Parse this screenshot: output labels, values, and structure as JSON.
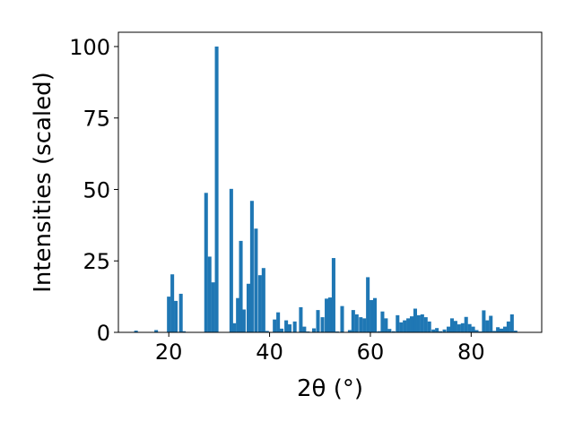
{
  "chart_data": {
    "type": "bar",
    "xlabel": "2θ (°)",
    "ylabel": "Intensities (scaled)",
    "xlim": [
      10,
      94
    ],
    "ylim": [
      0,
      105
    ],
    "xticks": [
      20,
      40,
      60,
      80
    ],
    "yticks": [
      0,
      25,
      50,
      75,
      100
    ],
    "bar_width": 0.72,
    "bar_color": "#1f77b4",
    "grid": false,
    "legend": "none",
    "x": [
      13.5,
      17.5,
      20.0,
      20.7,
      21.4,
      22.4,
      23.0,
      27.4,
      28.1,
      28.8,
      29.5,
      32.4,
      33.0,
      33.7,
      34.3,
      34.9,
      35.8,
      36.5,
      37.3,
      38.1,
      38.8,
      39.5,
      41.0,
      41.7,
      42.4,
      43.3,
      44.0,
      45.0,
      46.2,
      46.9,
      47.6,
      48.8,
      49.6,
      50.5,
      51.3,
      52.0,
      52.7,
      53.4,
      54.4,
      55.9,
      56.6,
      57.3,
      58.1,
      58.8,
      59.5,
      60.2,
      60.9,
      61.7,
      62.4,
      63.1,
      63.8,
      64.6,
      65.4,
      66.1,
      66.8,
      67.5,
      68.2,
      68.9,
      69.6,
      70.3,
      71.0,
      71.7,
      72.5,
      73.2,
      73.9,
      74.7,
      75.5,
      76.2,
      76.9,
      77.6,
      78.3,
      79.0,
      79.7,
      80.4,
      81.1,
      81.8,
      82.5,
      83.2,
      83.9,
      84.6,
      85.3,
      86.0,
      86.7,
      87.4,
      88.1,
      88.8
    ],
    "values": [
      0.6,
      0.8,
      12.5,
      20.3,
      11.0,
      13.5,
      0.4,
      48.8,
      26.5,
      17.5,
      100.0,
      50.2,
      3.2,
      12.0,
      32.0,
      8.0,
      17.0,
      46.0,
      36.3,
      20.0,
      22.5,
      0.5,
      4.5,
      7.0,
      1.3,
      4.2,
      2.8,
      3.8,
      8.8,
      2.0,
      0.3,
      1.4,
      7.8,
      5.3,
      11.8,
      12.2,
      26.0,
      0.3,
      9.2,
      0.8,
      7.8,
      6.3,
      5.3,
      4.9,
      19.3,
      11.3,
      12.0,
      0.4,
      7.3,
      4.9,
      1.2,
      0.4,
      6.0,
      3.5,
      4.2,
      4.9,
      5.6,
      8.3,
      6.0,
      6.3,
      5.3,
      3.8,
      1.0,
      1.5,
      0.4,
      1.0,
      2.0,
      4.9,
      4.0,
      2.8,
      3.2,
      5.4,
      2.9,
      2.0,
      0.8,
      0.3,
      7.7,
      4.2,
      5.8,
      0.5,
      1.8,
      1.3,
      2.0,
      3.8,
      6.3,
      0.6
    ]
  }
}
